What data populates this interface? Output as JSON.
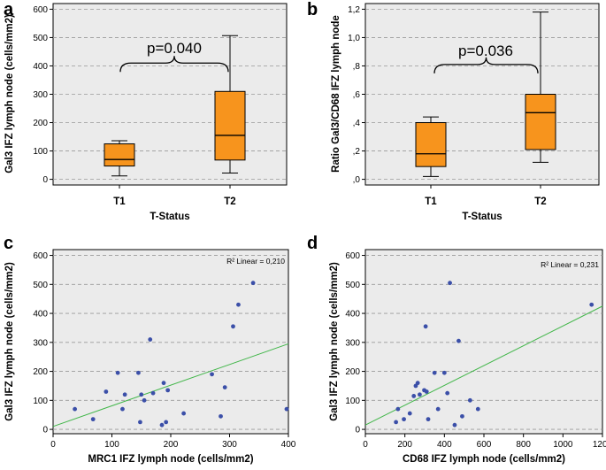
{
  "figure": {
    "background": "#ffffff",
    "plot_background": "#ebebeb",
    "box_color": "#f7941d",
    "point_color": "#3b4fa8",
    "fit_color": "#41b649",
    "grid_color": "#9a9a9a"
  },
  "chart_data": [
    {
      "panel": "a",
      "type": "box",
      "ylabel": "Gal3 IFZ lymph node (cells/mm2)",
      "xlabel": "T-Status",
      "ylim": [
        -20,
        620
      ],
      "yticks": [
        0,
        100,
        200,
        300,
        400,
        500,
        600
      ],
      "ytick_labels": [
        "0",
        "100",
        "200",
        "300",
        "400",
        "500",
        "600"
      ],
      "categories": [
        "T1",
        "T2"
      ],
      "boxes": [
        {
          "category": "T1",
          "min": 12,
          "q1": 47,
          "median": 70,
          "q3": 125,
          "max": 136
        },
        {
          "category": "T2",
          "min": 22,
          "q1": 68,
          "median": 155,
          "q3": 310,
          "max": 507
        }
      ],
      "annotation": "p=0.040",
      "bracket_y": 410
    },
    {
      "panel": "b",
      "type": "box",
      "ylabel": "Ratio Gal3/CD68 IFZ lymph node",
      "xlabel": "T-Status",
      "ylim": [
        -0.04,
        1.24
      ],
      "yticks": [
        0,
        0.2,
        0.4,
        0.6,
        0.8,
        1.0,
        1.2
      ],
      "ytick_labels": [
        ",0",
        ",2",
        ",4",
        ",6",
        ",8",
        "1,0",
        "1,2"
      ],
      "categories": [
        "T1",
        "T2"
      ],
      "boxes": [
        {
          "category": "T1",
          "min": 0.02,
          "q1": 0.09,
          "median": 0.18,
          "q3": 0.4,
          "max": 0.44
        },
        {
          "category": "T2",
          "min": 0.12,
          "q1": 0.21,
          "median": 0.47,
          "q3": 0.6,
          "max": 1.18
        }
      ],
      "annotation": "p=0.036",
      "bracket_y": 0.81
    },
    {
      "panel": "c",
      "type": "scatter",
      "ylabel": "Gal3 IFZ lymph node (cells/mm2)",
      "xlabel": "MRC1 IFZ lymph node (cells/mm2)",
      "xlim": [
        0,
        400
      ],
      "ylim": [
        -15,
        620
      ],
      "xticks": [
        0,
        100,
        200,
        300,
        400
      ],
      "yticks": [
        0,
        100,
        200,
        300,
        400,
        500,
        600
      ],
      "r2_label": "R² Linear = 0,210",
      "fit": {
        "x0": 0,
        "y0": 10,
        "x1": 400,
        "y1": 295
      },
      "points": [
        [
          37,
          70
        ],
        [
          68,
          35
        ],
        [
          90,
          130
        ],
        [
          110,
          195
        ],
        [
          118,
          70
        ],
        [
          122,
          120
        ],
        [
          145,
          195
        ],
        [
          148,
          25
        ],
        [
          150,
          120
        ],
        [
          155,
          100
        ],
        [
          165,
          310
        ],
        [
          170,
          125
        ],
        [
          185,
          15
        ],
        [
          188,
          160
        ],
        [
          192,
          25
        ],
        [
          195,
          135
        ],
        [
          222,
          55
        ],
        [
          270,
          190
        ],
        [
          285,
          45
        ],
        [
          292,
          145
        ],
        [
          306,
          355
        ],
        [
          315,
          430
        ],
        [
          340,
          505
        ],
        [
          397,
          70
        ]
      ]
    },
    {
      "panel": "d",
      "type": "scatter",
      "ylabel": "Gal3 IFZ lymph node (cells/mm2)",
      "xlabel": "CD68 IFZ lymph node (cells/mm2)",
      "xlim": [
        0,
        1200
      ],
      "ylim": [
        -15,
        620
      ],
      "xticks": [
        0,
        200,
        400,
        600,
        800,
        1000,
        1200
      ],
      "yticks": [
        0,
        100,
        200,
        300,
        400,
        500,
        600
      ],
      "r2_label": "R² Linear = 0,231",
      "fit": {
        "x0": 0,
        "y0": 15,
        "x1": 1200,
        "y1": 425
      },
      "points": [
        [
          155,
          25
        ],
        [
          165,
          70
        ],
        [
          195,
          35
        ],
        [
          225,
          55
        ],
        [
          245,
          115
        ],
        [
          255,
          150
        ],
        [
          265,
          160
        ],
        [
          275,
          120
        ],
        [
          298,
          135
        ],
        [
          305,
          355
        ],
        [
          310,
          130
        ],
        [
          318,
          35
        ],
        [
          350,
          195
        ],
        [
          368,
          70
        ],
        [
          400,
          195
        ],
        [
          415,
          125
        ],
        [
          428,
          505
        ],
        [
          452,
          15
        ],
        [
          472,
          305
        ],
        [
          490,
          45
        ],
        [
          530,
          100
        ],
        [
          570,
          70
        ],
        [
          1145,
          430
        ]
      ]
    }
  ]
}
